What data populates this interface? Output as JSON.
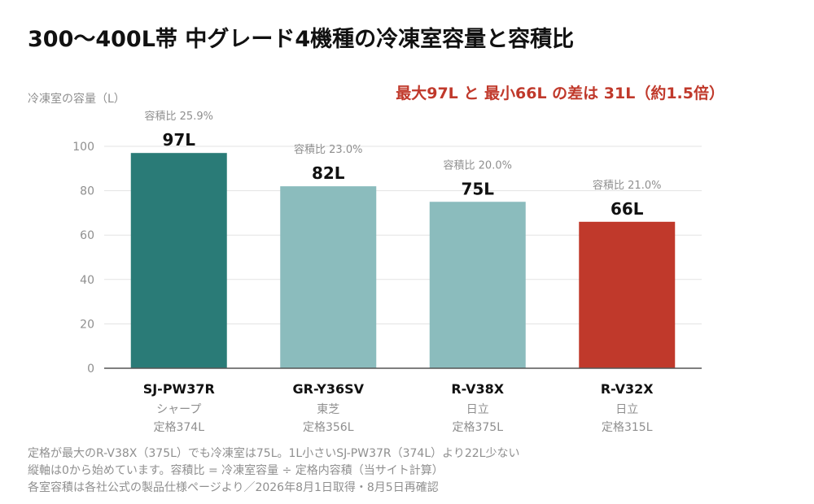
{
  "title": "300〜400L帯 中グレード4機種の冷凍室容量と容積比",
  "highlight": "最大97L と 最小66L の差は 31L（約1.5倍）",
  "colors": {
    "sharp": "#2a7b77",
    "mid": "#8bbcbd",
    "min": "#c0392b",
    "grid": "#e3e3e3",
    "axis": "#555555"
  },
  "chart_data": {
    "type": "bar",
    "ylabel": "冷凍室の容量（L）",
    "ylim": [
      0,
      100
    ],
    "yticks": [
      0,
      20,
      40,
      60,
      80,
      100
    ],
    "grid": true,
    "categories": [
      "SJ-PW37R",
      "GR-Y36SV",
      "R-V38X",
      "R-V32X"
    ],
    "values": [
      97,
      82,
      75,
      66
    ],
    "value_labels": [
      "97L",
      "82L",
      "75L",
      "66L"
    ],
    "ratio_labels": [
      "容積比 25.9%",
      "容積比 23.0%",
      "容積比 20.0%",
      "容積比 21.0%"
    ],
    "makers": [
      "シャープ",
      "東芝",
      "日立",
      "日立"
    ],
    "capacities": [
      "定格374L",
      "定格356L",
      "定格375L",
      "定格315L"
    ],
    "bar_colors": [
      "#2a7b77",
      "#8bbcbd",
      "#8bbcbd",
      "#c0392b"
    ]
  },
  "notes": [
    "定格が最大のR-V38X（375L）でも冷凍室は75L。1L小さいSJ-PW37R（374L）より22L少ない",
    "縦軸は0から始めています。容積比 = 冷凍室容量 ÷ 定格内容積（当サイト計算）",
    "各室容積は各社公式の製品仕様ページより／2026年8月1日取得・8月5日再確認"
  ]
}
